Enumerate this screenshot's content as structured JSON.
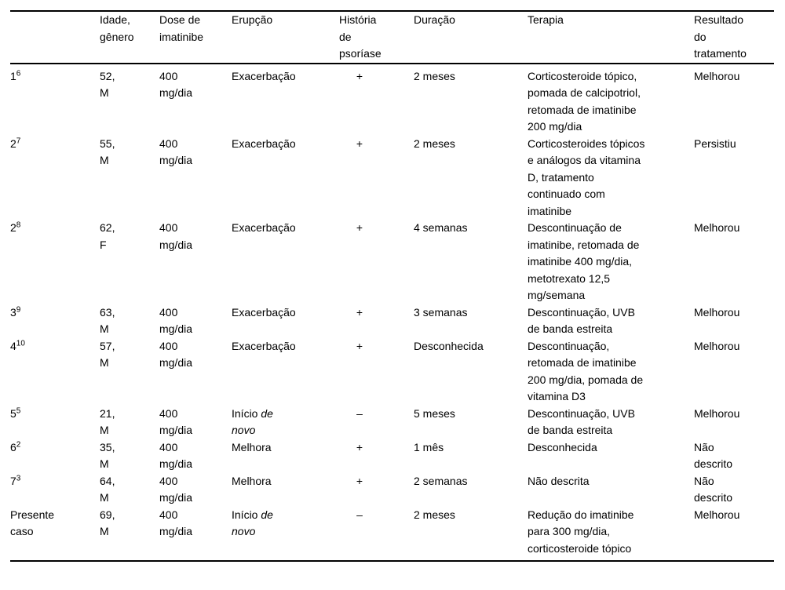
{
  "table": {
    "columns": [
      {
        "key": "case",
        "label": ""
      },
      {
        "key": "idade",
        "label": "Idade,\ngênero"
      },
      {
        "key": "dose",
        "label": "Dose de\nimatinibe"
      },
      {
        "key": "erupcao",
        "label": "Erupção"
      },
      {
        "key": "psoriase",
        "label": "História\nde\npsoríase"
      },
      {
        "key": "duracao",
        "label": "Duração"
      },
      {
        "key": "terapia",
        "label": "Terapia"
      },
      {
        "key": "resultado",
        "label": "Resultado\ndo\ntratamento"
      }
    ],
    "rows": [
      {
        "case": "1",
        "case_sup": "6",
        "idade": "52,\nM",
        "dose": "400\nmg/dia",
        "erupcao": [
          {
            "text": "Exacerbação"
          }
        ],
        "psoriase": "+",
        "duracao": "2 meses",
        "terapia": "Corticosteroide tópico,\npomada de calcipotriol,\nretomada de imatinibe\n200 mg/dia",
        "resultado": "Melhorou"
      },
      {
        "case": "2",
        "case_sup": "7",
        "idade": "55,\nM",
        "dose": "400\nmg/dia",
        "erupcao": [
          {
            "text": "Exacerbação"
          }
        ],
        "psoriase": "+",
        "duracao": "2 meses",
        "terapia": "Corticosteroides tópicos\ne análogos da vitamina\nD, tratamento\ncontinuado com\nimatinibe",
        "resultado": "Persistiu"
      },
      {
        "case": "2",
        "case_sup": "8",
        "idade": "62,\nF",
        "dose": "400\nmg/dia",
        "erupcao": [
          {
            "text": "Exacerbação"
          }
        ],
        "psoriase": "+",
        "duracao": "4 semanas",
        "terapia": "Descontinuação de\nimatinibe, retomada de\nimatinibe 400 mg/dia,\nmetotrexato 12,5\nmg/semana",
        "resultado": "Melhorou"
      },
      {
        "case": "3",
        "case_sup": "9",
        "idade": "63,\nM",
        "dose": "400\nmg/dia",
        "erupcao": [
          {
            "text": "Exacerbação"
          }
        ],
        "psoriase": "+",
        "duracao": "3 semanas",
        "terapia": "Descontinuação, UVB\nde banda estreita",
        "resultado": "Melhorou"
      },
      {
        "case": "4",
        "case_sup": "10",
        "idade": "57,\nM",
        "dose": "400\nmg/dia",
        "erupcao": [
          {
            "text": "Exacerbação"
          }
        ],
        "psoriase": "+",
        "duracao": "Desconhecida",
        "terapia": "Descontinuação,\nretomada de imatinibe\n200 mg/dia, pomada de\nvitamina D3",
        "resultado": "Melhorou"
      },
      {
        "case": "5",
        "case_sup": "5",
        "idade": "21,\nM",
        "dose": "400\nmg/dia",
        "erupcao": [
          {
            "text": "Início "
          },
          {
            "text": "de\nnovo",
            "italic": true
          }
        ],
        "psoriase": "–",
        "duracao": "5 meses",
        "terapia": "Descontinuação, UVB\nde banda estreita",
        "resultado": "Melhorou"
      },
      {
        "case": "6",
        "case_sup": "2",
        "idade": "35,\nM",
        "dose": "400\nmg/dia",
        "erupcao": [
          {
            "text": "Melhora"
          }
        ],
        "psoriase": "+",
        "duracao": "1 mês",
        "terapia": "Desconhecida",
        "resultado": "Não\ndescrito"
      },
      {
        "case": "7",
        "case_sup": "3",
        "idade": "64,\nM",
        "dose": "400\nmg/dia",
        "erupcao": [
          {
            "text": "Melhora"
          }
        ],
        "psoriase": "+",
        "duracao": "2 semanas",
        "terapia": "Não descrita",
        "resultado": "Não\ndescrito"
      },
      {
        "case": "Presente\ncaso",
        "case_sup": "",
        "idade": "69,\nM",
        "dose": "400\nmg/dia",
        "erupcao": [
          {
            "text": "Início "
          },
          {
            "text": "de\nnovo",
            "italic": true
          }
        ],
        "psoriase": "–",
        "duracao": "2 meses",
        "terapia": "Redução do imatinibe\npara 300 mg/dia,\ncorticosteroide tópico",
        "resultado": "Melhorou"
      }
    ]
  }
}
